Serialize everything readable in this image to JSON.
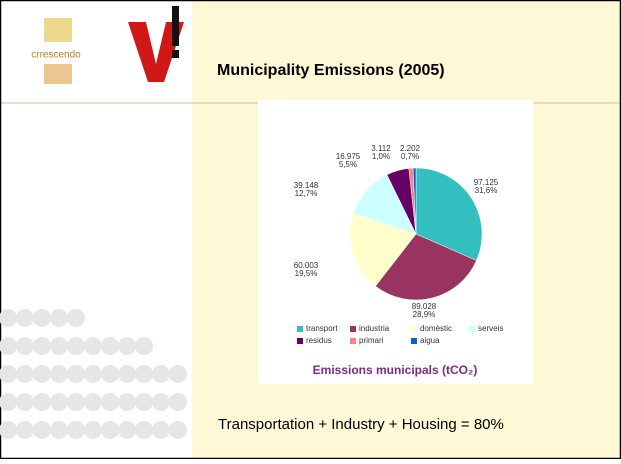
{
  "logo": "crrescendo",
  "title": "Municipality Emissions (2005)",
  "chart_data": {
    "type": "pie",
    "title": "Emissions municipals (tCO₂)",
    "categories": [
      "transport",
      "industria",
      "domèstic",
      "serveis",
      "residus",
      "primari",
      "aigua"
    ],
    "values": [
      97125,
      89028,
      60003,
      39148,
      16975,
      3112,
      2202
    ],
    "value_labels": [
      "97.125",
      "89.028",
      "60.003",
      "39.148",
      "16.975",
      "3.112",
      "2.202"
    ],
    "percentages": [
      31.6,
      28.9,
      19.5,
      12.7,
      5.5,
      1.0,
      0.7
    ],
    "percentage_labels": [
      "31,6%",
      "28,9%",
      "19,5%",
      "12,7%",
      "5,5%",
      "1,0%",
      "0,7%"
    ],
    "colors": [
      "#33bfbf",
      "#99335f",
      "#ffffcc",
      "#ccffff",
      "#660066",
      "#ff8080",
      "#0066cc"
    ],
    "legend": "bottom"
  },
  "caption": "Transportation + Industry + Housing = 80%"
}
